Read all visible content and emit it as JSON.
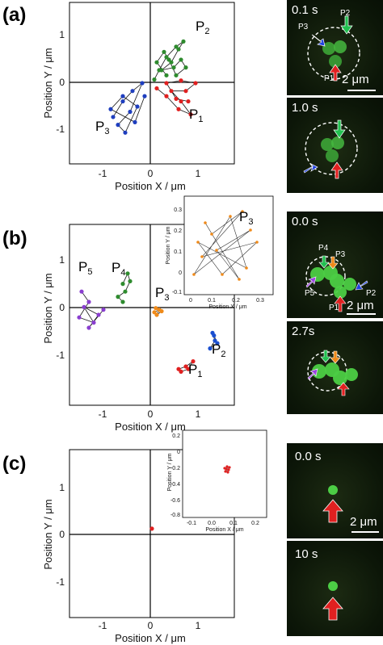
{
  "panels": [
    {
      "letter": "(a)",
      "xlabel": "Position X / μm",
      "ylabel": "Position Y / μm",
      "xticks": [
        "-1",
        "0",
        "1"
      ],
      "yticks": [
        "1",
        "0",
        "-1"
      ],
      "particles": [
        {
          "main": "P",
          "sub": "2"
        },
        {
          "main": "P",
          "sub": "1"
        },
        {
          "main": "P",
          "sub": "3"
        }
      ],
      "micrographs": [
        {
          "time": "0.1 s",
          "scale": "2 μm",
          "labels": [
            "P3",
            "P2",
            "P1"
          ]
        },
        {
          "time": "1.0 s"
        }
      ]
    },
    {
      "letter": "(b)",
      "xlabel": "Position X / μm",
      "ylabel": "Position Y / μm",
      "xticks": [
        "-1",
        "0",
        "1"
      ],
      "yticks": [
        "1",
        "0",
        "-1"
      ],
      "particles": [
        {
          "main": "P",
          "sub": "5"
        },
        {
          "main": "P",
          "sub": "4"
        },
        {
          "main": "P",
          "sub": "3"
        },
        {
          "main": "P",
          "sub": "2"
        },
        {
          "main": "P",
          "sub": "1"
        }
      ],
      "inset": {
        "label": {
          "main": "P",
          "sub": "3"
        },
        "xlabel": "Position X / μm",
        "ylabel": "Position Y / μm",
        "xticks": [
          "0",
          "0.1",
          "0.2",
          "0.3"
        ],
        "yticks": [
          "0.3",
          "0.2",
          "0.1",
          "0",
          "-0.1"
        ]
      },
      "micrographs": [
        {
          "time": "0.0 s",
          "scale": "2 μm",
          "labels": [
            "P4",
            "P3",
            "P5",
            "P2",
            "P1"
          ]
        },
        {
          "time": "2.7s"
        }
      ]
    },
    {
      "letter": "(c)",
      "xlabel": "Position X / μm",
      "ylabel": "Position Y / μm",
      "xticks": [
        "-1",
        "0",
        "1"
      ],
      "yticks": [
        "1",
        "0",
        "-1"
      ],
      "inset": {
        "xlabel": "Position X / μm",
        "ylabel": "Position Y / μm",
        "xticks": [
          "-0.1",
          "0.0",
          "0.1",
          "0.2"
        ],
        "yticks": [
          "0.2",
          "0",
          "-0.2",
          "-0.4",
          "-0.6",
          "-0.8"
        ]
      },
      "micrographs": [
        {
          "time": "0.0 s",
          "scale": "2 μm"
        },
        {
          "time": "10 s"
        }
      ]
    }
  ],
  "colors": {
    "P1": "#e02020",
    "P2": "#2e8b2e",
    "P3_a": "#1f3fbf",
    "P3_b": "#ef8a1a",
    "P2_b": "#1a4fd0",
    "P4_b": "#2e8b2e",
    "P5_b": "#8a3fd0"
  },
  "chart_data": [
    {
      "type": "scatter",
      "panel": "(a)",
      "xlabel": "Position X / μm",
      "ylabel": "Position Y / μm",
      "xlim": [
        -1.7,
        1.7
      ],
      "ylim": [
        -1.5,
        1.6
      ],
      "series": [
        {
          "name": "P2",
          "color": "#2e8b2e",
          "points": [
            [
              0.05,
              0.12
            ],
            [
              0.15,
              0.3
            ],
            [
              0.3,
              0.55
            ],
            [
              0.5,
              0.75
            ],
            [
              0.65,
              0.85
            ],
            [
              0.55,
              0.7
            ],
            [
              0.4,
              0.45
            ],
            [
              0.2,
              0.3
            ],
            [
              0.45,
              0.35
            ],
            [
              0.6,
              0.5
            ],
            [
              0.7,
              0.35
            ],
            [
              0.5,
              0.2
            ],
            [
              0.35,
              0.5
            ],
            [
              0.25,
              0.65
            ],
            [
              0.1,
              0.45
            ],
            [
              0.3,
              0.2
            ]
          ]
        },
        {
          "name": "P1",
          "color": "#e02020",
          "points": [
            [
              0.1,
              -0.05
            ],
            [
              0.3,
              -0.2
            ],
            [
              0.55,
              -0.45
            ],
            [
              0.8,
              -0.55
            ],
            [
              0.6,
              -0.3
            ],
            [
              0.4,
              -0.1
            ],
            [
              0.7,
              -0.1
            ],
            [
              0.9,
              0.05
            ],
            [
              0.6,
              0.1
            ],
            [
              0.3,
              0.05
            ],
            [
              0.5,
              -0.25
            ],
            [
              0.75,
              -0.3
            ]
          ]
        },
        {
          "name": "P3",
          "color": "#1f3fbf",
          "points": [
            [
              -0.8,
              -0.6
            ],
            [
              -0.6,
              -0.3
            ],
            [
              -0.4,
              -0.1
            ],
            [
              -0.2,
              0.05
            ],
            [
              -0.45,
              -0.5
            ],
            [
              -0.7,
              -0.75
            ],
            [
              -0.55,
              -0.9
            ],
            [
              -0.3,
              -0.4
            ],
            [
              -0.6,
              -0.2
            ],
            [
              -0.85,
              -0.45
            ],
            [
              -0.35,
              -0.7
            ],
            [
              -0.15,
              -0.2
            ]
          ]
        }
      ]
    },
    {
      "type": "scatter",
      "panel": "(b)",
      "xlabel": "Position X / μm",
      "ylabel": "Position Y / μm",
      "xlim": [
        -1.7,
        1.7
      ],
      "ylim": [
        -1.8,
        1.7
      ],
      "series": [
        {
          "name": "P5",
          "color": "#8a3fd0",
          "points": [
            [
              -1.45,
              0.4
            ],
            [
              -1.3,
              0.2
            ],
            [
              -1.5,
              -0.1
            ],
            [
              -1.2,
              -0.2
            ],
            [
              -1.4,
              0.1
            ],
            [
              -1.1,
              -0.05
            ],
            [
              -1.3,
              -0.3
            ],
            [
              -1.0,
              0.05
            ]
          ]
        },
        {
          "name": "P4",
          "color": "#2e8b2e",
          "points": [
            [
              -0.6,
              0.55
            ],
            [
              -0.5,
              0.75
            ],
            [
              -0.45,
              0.6
            ],
            [
              -0.55,
              0.4
            ],
            [
              -0.7,
              0.3
            ],
            [
              -0.6,
              0.2
            ]
          ]
        },
        {
          "name": "P3",
          "color": "#ef8a1a",
          "points": [
            [
              0.05,
              0.0
            ],
            [
              0.15,
              0.05
            ],
            [
              0.1,
              -0.05
            ],
            [
              0.2,
              0.02
            ],
            [
              0.08,
              0.08
            ]
          ]
        },
        {
          "name": "P2",
          "color": "#1a4fd0",
          "points": [
            [
              1.25,
              -0.4
            ],
            [
              1.3,
              -0.55
            ],
            [
              1.2,
              -0.7
            ],
            [
              1.35,
              -0.6
            ],
            [
              1.28,
              -0.45
            ]
          ]
        },
        {
          "name": "P1",
          "color": "#e02020",
          "points": [
            [
              0.55,
              -1.1
            ],
            [
              0.7,
              -1.05
            ],
            [
              0.85,
              -0.95
            ],
            [
              0.75,
              -1.1
            ],
            [
              0.6,
              -1.15
            ]
          ]
        }
      ]
    },
    {
      "type": "scatter",
      "panel": "(c)",
      "xlabel": "Position X / μm",
      "ylabel": "Position Y / μm",
      "xlim": [
        -1.7,
        1.7
      ],
      "ylim": [
        -1.8,
        1.6
      ],
      "series": [
        {
          "color": "#e02020",
          "points": [
            [
              0.0,
              0.0
            ]
          ]
        }
      ]
    }
  ]
}
